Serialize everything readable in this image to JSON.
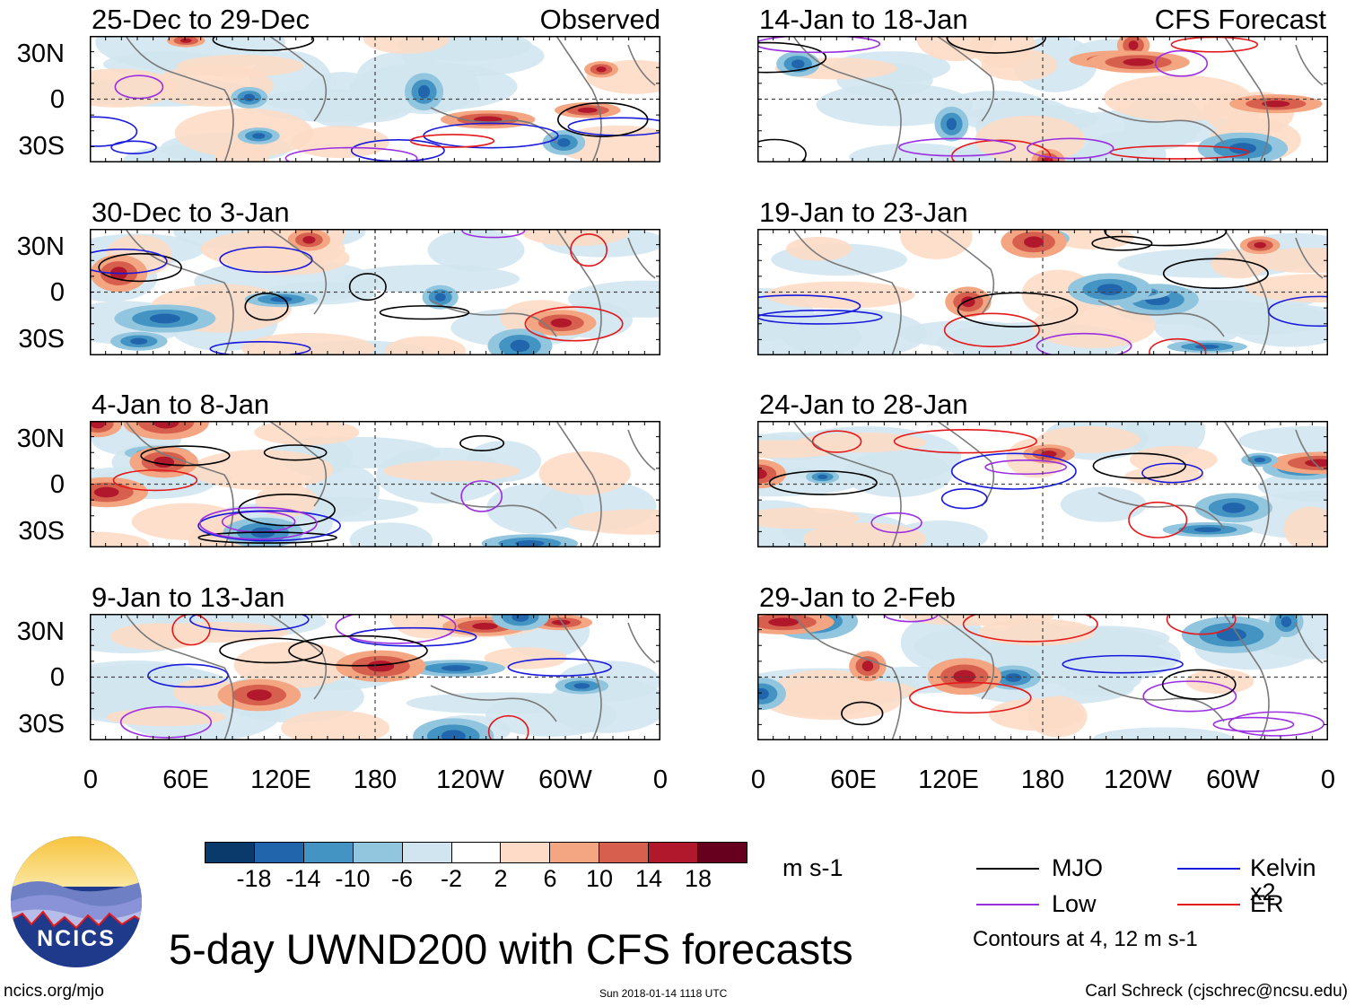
{
  "figure": {
    "title": "5-day UWND200 with CFS forecasts",
    "site": "ncics.org/mjo",
    "timestamp": "Sun 2018-01-14 1118 UTC",
    "author": "Carl Schreck (cjschrec@ncsu.edu)",
    "logo_text": "NCICS"
  },
  "axes": {
    "lat_labels": [
      "30N",
      "0",
      "30S"
    ],
    "lon_labels": [
      "0",
      "60E",
      "120E",
      "180",
      "120W",
      "60W",
      "0"
    ]
  },
  "panels": {
    "left": [
      {
        "title": "25-Dec to 29-Dec",
        "label": "Observed"
      },
      {
        "title": "30-Dec to 3-Jan",
        "label": ""
      },
      {
        "title": "4-Jan to 8-Jan",
        "label": ""
      },
      {
        "title": "9-Jan to 13-Jan",
        "label": ""
      }
    ],
    "right": [
      {
        "title": "14-Jan to 18-Jan",
        "label": "CFS Forecast"
      },
      {
        "title": "19-Jan to 23-Jan",
        "label": ""
      },
      {
        "title": "24-Jan to 28-Jan",
        "label": ""
      },
      {
        "title": "29-Jan to 2-Feb",
        "label": ""
      }
    ]
  },
  "colorbar": {
    "units": "m s-1",
    "ticks": [
      "-18",
      "-14",
      "-10",
      "-6",
      "-2",
      "2",
      "6",
      "10",
      "14",
      "18"
    ],
    "colors": [
      "#0a3a6b",
      "#2166ac",
      "#4393c3",
      "#92c5de",
      "#d1e5f0",
      "#ffffff",
      "#fddbc7",
      "#f4a582",
      "#d6604d",
      "#b2182b",
      "#67001f"
    ]
  },
  "legend": {
    "items": [
      {
        "label": "MJO",
        "color": "#000000"
      },
      {
        "label": "Kelvin x2",
        "color": "#1a1adb"
      },
      {
        "label": "Low",
        "color": "#9b30e0"
      },
      {
        "label": "ER",
        "color": "#e31a1c"
      }
    ],
    "note": "Contours at 4, 12 m s-1"
  }
}
